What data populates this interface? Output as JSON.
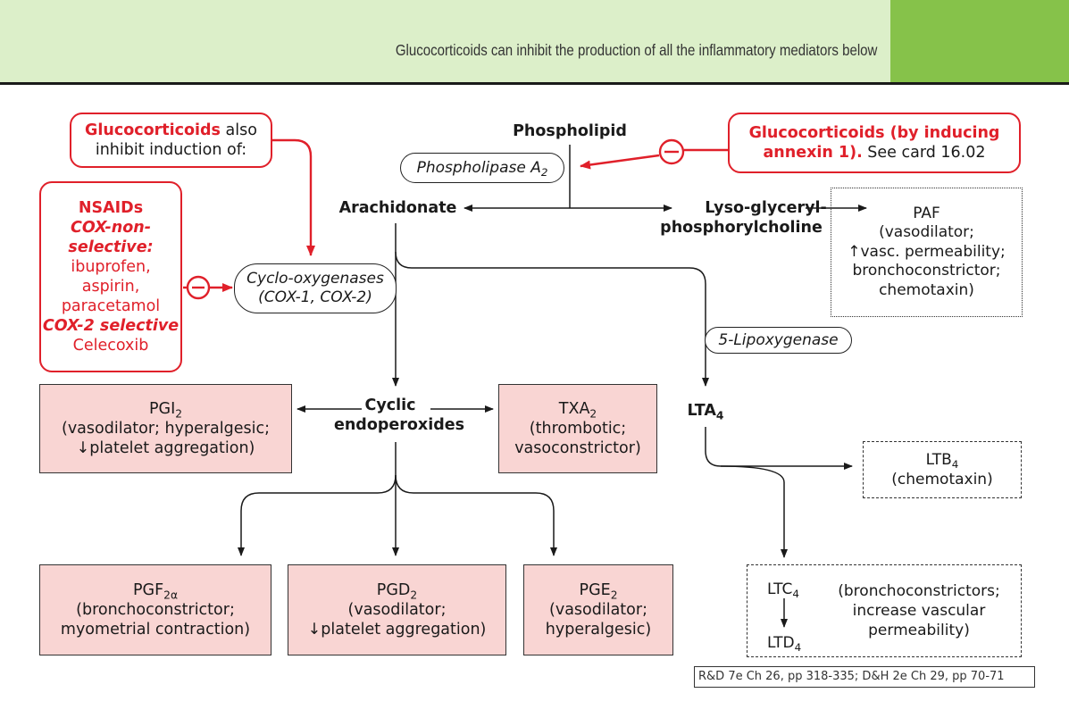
{
  "header": {
    "title": "Glucocorticoids can inhibit the production of all the inflammatory mediators below"
  },
  "nodes": {
    "phospholipid": "Phospholipid",
    "phospholipase_main": "Phospholipase A",
    "phospholipase_sub": "2",
    "arachidonate": "Arachidonate",
    "lyso_line1": "Lyso-glyceryl-",
    "lyso_line2": "phosphorylcholine",
    "cox_line1": "Cyclo-oxygenases",
    "cox_line2": "(COX-1, COX-2)",
    "lipoxygenase": "5-Lipoxygenase",
    "cyclic_line1": "Cyclic",
    "cyclic_line2": "endoperoxides",
    "lta4_main": "LTA",
    "lta4_sub": "4"
  },
  "red_boxes": {
    "gluco_inhibit_bold": "Glucocorticoids",
    "gluco_inhibit_rest": " also",
    "gluco_inhibit_line2": "inhibit induction of:",
    "annexin_bold": "Glucocorticoids (by inducing",
    "annexin_bold2": "annexin 1).",
    "annexin_rest": " See card 16.02",
    "nsaids_title": "NSAIDs",
    "nsaids_nonsel1": "COX-non-",
    "nsaids_nonsel2": "selective:",
    "nsaids_drug1": "ibuprofen,",
    "nsaids_drug2": "aspirin,",
    "nsaids_drug3": "paracetamol",
    "nsaids_cox2": "COX-2 selective",
    "nsaids_drug4": "Celecoxib"
  },
  "mediators": {
    "paf": {
      "title": "PAF",
      "line1": "(vasodilator;",
      "line2_arrow": "↑",
      "line2": "vasc. permeability;",
      "line3": "bronchoconstrictor;",
      "line4": "chemotaxin)"
    },
    "pgi2": {
      "title": "PGI",
      "sub": "2",
      "line1": "(vasodilator; hyperalgesic;",
      "line2_arrow": "↓",
      "line2": "platelet aggregation)"
    },
    "txa2": {
      "title": "TXA",
      "sub": "2",
      "line1": "(thrombotic;",
      "line2": "vasoconstrictor)"
    },
    "ltb4": {
      "title": "LTB",
      "sub": "4",
      "line1": "(chemotaxin)"
    },
    "pgf2a": {
      "title": "PGF",
      "sub": "2α",
      "line1": "(bronchoconstrictor;",
      "line2": "myometrial contraction)"
    },
    "pgd2": {
      "title": "PGD",
      "sub": "2",
      "line1": "(vasodilator;",
      "line2_arrow": "↓",
      "line2": "platelet aggregation)"
    },
    "pge2": {
      "title": "PGE",
      "sub": "2",
      "line1": "(vasodilator;",
      "line2": "hyperalgesic)"
    },
    "ltc4_ltd4": {
      "ltc": "LTC",
      "ltc_sub": "4",
      "ltd": "LTD",
      "ltd_sub": "4",
      "line1": "(bronchoconstrictors;",
      "line2": "increase vascular",
      "line3": "permeability)"
    }
  },
  "reference": "R&D 7e Ch 26, pp 318-335; D&H 2e Ch 29, pp 70-71",
  "colors": {
    "header_bg": "#dcefc9",
    "header_accent": "#86c24a",
    "inhibitor_red": "#e0202a",
    "mediator_fill": "#f9d5d3"
  }
}
